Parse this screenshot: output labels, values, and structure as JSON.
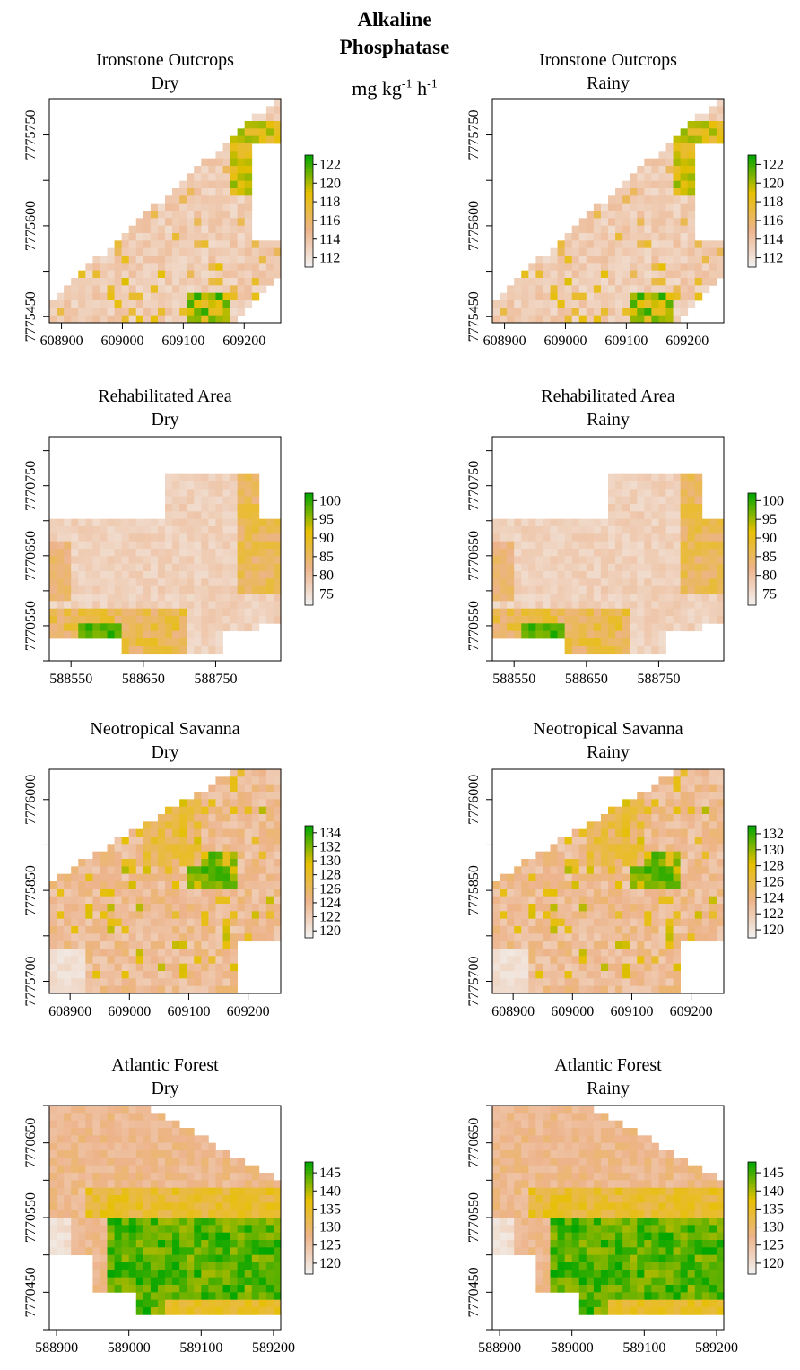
{
  "header": {
    "title_line1": "Alkaline",
    "title_line2": "Phosphatase",
    "unit_base": "mg kg",
    "unit_exp1": "-1",
    "unit_h": " h",
    "unit_exp2": "-1"
  },
  "colormap": [
    "#f2f2f2",
    "#edb48c",
    "#e6c000",
    "#00a600"
  ],
  "chart_data": [
    {
      "type": "heatmap",
      "title": "Ironstone Outcrops",
      "subtitle": "Dry",
      "x_ticks": [
        608900,
        609000,
        609100,
        609200
      ],
      "y_ticks": [
        7775450,
        7775600,
        7775750
      ],
      "xlim": [
        608880,
        609260
      ],
      "ylim": [
        7775440,
        7775810
      ],
      "legend_ticks": [
        112,
        114,
        116,
        118,
        120,
        122
      ],
      "value_range": [
        111,
        123
      ],
      "shape": "ironstone",
      "seed": 11
    },
    {
      "type": "heatmap",
      "title": "Ironstone Outcrops",
      "subtitle": "Rainy",
      "x_ticks": [
        608900,
        609000,
        609100,
        609200
      ],
      "y_ticks": [
        7775450,
        7775600,
        7775750
      ],
      "xlim": [
        608880,
        609260
      ],
      "ylim": [
        7775440,
        7775810
      ],
      "legend_ticks": [
        112,
        114,
        116,
        118,
        120,
        122
      ],
      "value_range": [
        111,
        123
      ],
      "shape": "ironstone",
      "seed": 11
    },
    {
      "type": "heatmap",
      "title": "Rehabilitated Area",
      "subtitle": "Dry",
      "x_ticks": [
        588550,
        588650,
        588750
      ],
      "y_ticks": [
        7770550,
        7770650,
        7770750
      ],
      "xlim": [
        588520,
        588840
      ],
      "ylim": [
        7770500,
        7770820
      ],
      "legend_ticks": [
        75,
        80,
        85,
        90,
        95,
        100
      ],
      "value_range": [
        72,
        102
      ],
      "shape": "rehab",
      "seed": 23
    },
    {
      "type": "heatmap",
      "title": "Rehabilitated Area",
      "subtitle": "Rainy",
      "x_ticks": [
        588550,
        588650,
        588750
      ],
      "y_ticks": [
        7770550,
        7770650,
        7770750
      ],
      "xlim": [
        588520,
        588840
      ],
      "ylim": [
        7770500,
        7770820
      ],
      "legend_ticks": [
        75,
        80,
        85,
        90,
        95,
        100
      ],
      "value_range": [
        72,
        102
      ],
      "shape": "rehab",
      "seed": 23
    },
    {
      "type": "heatmap",
      "title": "Neotropical Savanna",
      "subtitle": "Dry",
      "x_ticks": [
        608900,
        609000,
        609100,
        609200
      ],
      "y_ticks": [
        7775700,
        7775850,
        7776000
      ],
      "xlim": [
        608865,
        609255
      ],
      "ylim": [
        7775680,
        7776050
      ],
      "legend_ticks": [
        120,
        122,
        124,
        126,
        128,
        130,
        132,
        134
      ],
      "value_range": [
        119,
        135
      ],
      "shape": "savanna",
      "seed": 37
    },
    {
      "type": "heatmap",
      "title": "Neotropical Savanna",
      "subtitle": "Rainy",
      "x_ticks": [
        608900,
        609000,
        609100,
        609200
      ],
      "y_ticks": [
        7775700,
        7775850,
        7776000
      ],
      "xlim": [
        608865,
        609255
      ],
      "ylim": [
        7775680,
        7776050
      ],
      "legend_ticks": [
        120,
        122,
        124,
        126,
        128,
        130,
        132
      ],
      "value_range": [
        119,
        133
      ],
      "shape": "savanna",
      "seed": 37
    },
    {
      "type": "heatmap",
      "title": "Atlantic Forest",
      "subtitle": "Dry",
      "x_ticks": [
        588900,
        589000,
        589100,
        589200
      ],
      "y_ticks": [
        7770450,
        7770550,
        7770650
      ],
      "xlim": [
        588890,
        589210
      ],
      "ylim": [
        7770400,
        7770700
      ],
      "legend_ticks": [
        120,
        125,
        130,
        135,
        140,
        145
      ],
      "value_range": [
        117,
        148
      ],
      "shape": "forest",
      "seed": 53
    },
    {
      "type": "heatmap",
      "title": "Atlantic Forest",
      "subtitle": "Rainy",
      "x_ticks": [
        588900,
        589000,
        589100,
        589200
      ],
      "y_ticks": [
        7770450,
        7770550,
        7770650
      ],
      "xlim": [
        588890,
        589210
      ],
      "ylim": [
        7770400,
        7770700
      ],
      "legend_ticks": [
        120,
        125,
        130,
        135,
        140,
        145
      ],
      "value_range": [
        117,
        148
      ],
      "shape": "forest",
      "seed": 53
    }
  ]
}
